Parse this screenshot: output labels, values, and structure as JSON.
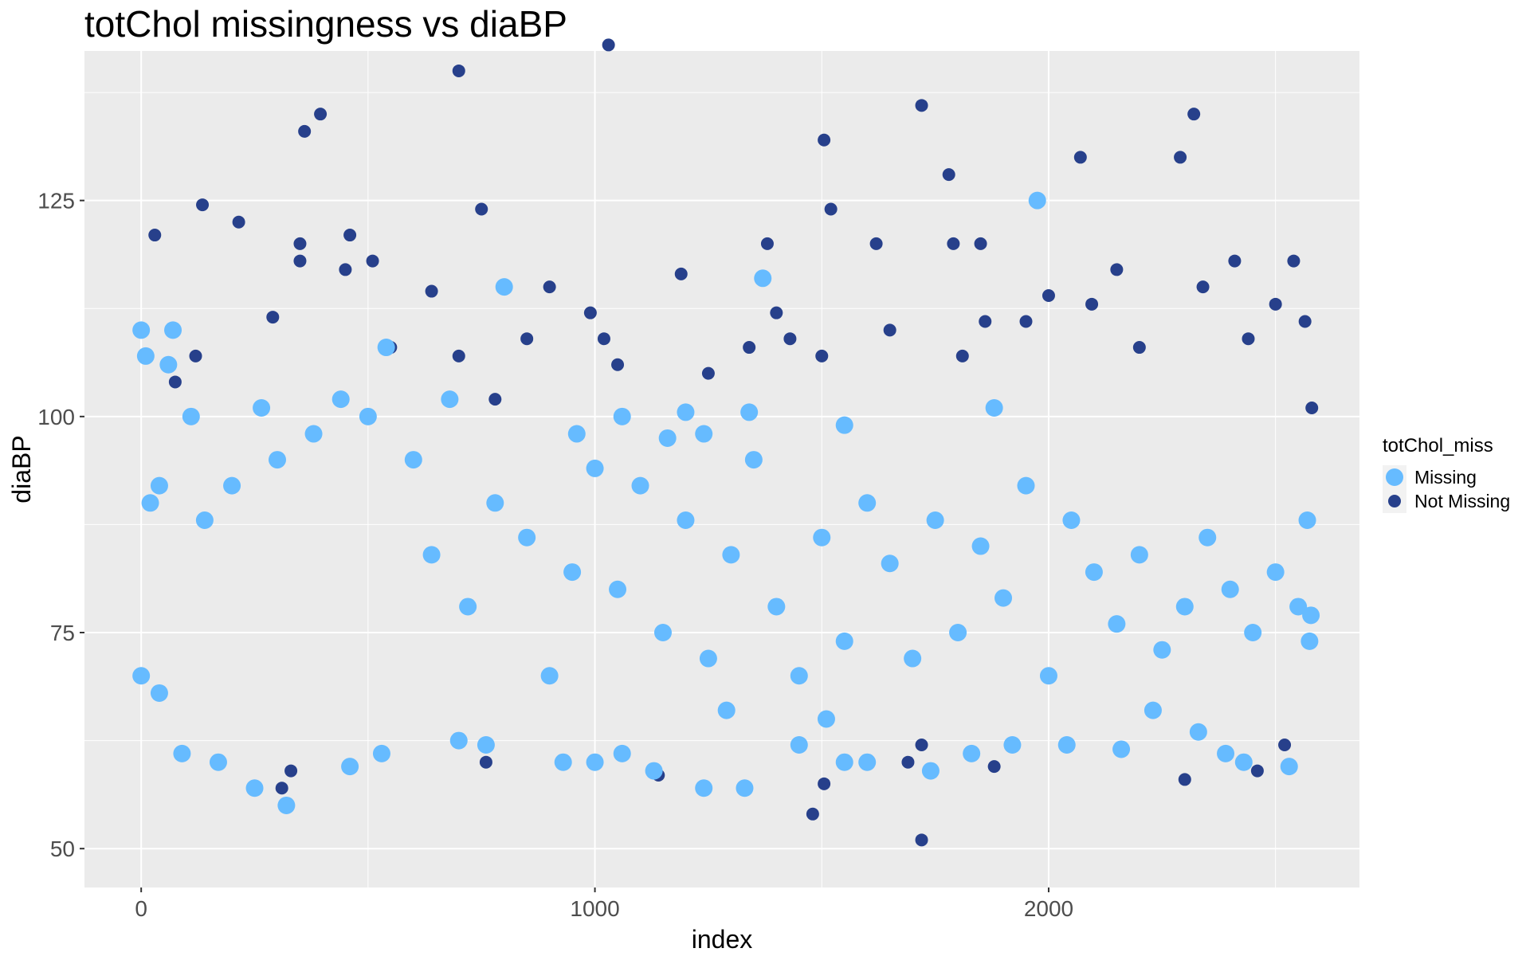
{
  "chart_data": {
    "type": "scatter",
    "title": "totChol missingness vs diaBP",
    "xlabel": "index",
    "ylabel": "diaBP",
    "xlim": [
      -125,
      2685
    ],
    "ylim": [
      45.5,
      142.3
    ],
    "x_ticks": [
      0,
      1000,
      2000
    ],
    "y_ticks": [
      50,
      75,
      100,
      125
    ],
    "grid": true,
    "legend": {
      "title": "totChol_miss",
      "position": "right",
      "entries": [
        "Missing",
        "Not Missing"
      ]
    },
    "colors": {
      "Missing": "#66bbff",
      "Not Missing": "#27408b",
      "panel": "#ebebeb",
      "grid": "#ffffff"
    },
    "series": [
      {
        "name": "Not Missing",
        "color": "#27408b",
        "points": [
          [
            30,
            121
          ],
          [
            75,
            104
          ],
          [
            120,
            107
          ],
          [
            135,
            124.5
          ],
          [
            215,
            122.5
          ],
          [
            290,
            111.5
          ],
          [
            350,
            118
          ],
          [
            350,
            120
          ],
          [
            360,
            133
          ],
          [
            395,
            135
          ],
          [
            450,
            117
          ],
          [
            460,
            121
          ],
          [
            510,
            118
          ],
          [
            550,
            108
          ],
          [
            640,
            114.5
          ],
          [
            700,
            140
          ],
          [
            700,
            107
          ],
          [
            750,
            124
          ],
          [
            780,
            102
          ],
          [
            850,
            109
          ],
          [
            900,
            115
          ],
          [
            990,
            112
          ],
          [
            1020,
            109
          ],
          [
            1030,
            143
          ],
          [
            1050,
            106
          ],
          [
            1190,
            116.5
          ],
          [
            1250,
            105
          ],
          [
            1340,
            108
          ],
          [
            1380,
            120
          ],
          [
            1400,
            112
          ],
          [
            1430,
            109
          ],
          [
            1500,
            107
          ],
          [
            1505,
            132
          ],
          [
            1520,
            124
          ],
          [
            1620,
            120
          ],
          [
            1650,
            110
          ],
          [
            1720,
            136
          ],
          [
            1780,
            128
          ],
          [
            1790,
            120
          ],
          [
            1810,
            107
          ],
          [
            1850,
            120
          ],
          [
            1860,
            111
          ],
          [
            1950,
            111
          ],
          [
            2000,
            114
          ],
          [
            2070,
            130
          ],
          [
            2095,
            113
          ],
          [
            2150,
            117
          ],
          [
            2200,
            108
          ],
          [
            2290,
            130
          ],
          [
            2320,
            135
          ],
          [
            2340,
            115
          ],
          [
            2410,
            118
          ],
          [
            2440,
            109
          ],
          [
            2500,
            113
          ],
          [
            2540,
            118
          ],
          [
            2565,
            111
          ],
          [
            2580,
            101
          ],
          [
            1720,
            51
          ],
          [
            1480,
            54
          ],
          [
            1505,
            57.5
          ],
          [
            310,
            57
          ],
          [
            330,
            59
          ],
          [
            1140,
            58.5
          ],
          [
            1880,
            59.5
          ],
          [
            2300,
            58
          ],
          [
            2460,
            59
          ],
          [
            1720,
            62
          ],
          [
            2520,
            62
          ],
          [
            760,
            60
          ],
          [
            1690,
            60
          ]
        ]
      },
      {
        "name": "Missing",
        "color": "#66bbff",
        "points": [
          [
            0,
            110
          ],
          [
            10,
            107
          ],
          [
            70,
            110
          ],
          [
            60,
            106
          ],
          [
            800,
            115
          ],
          [
            1370,
            116
          ],
          [
            1975,
            125
          ],
          [
            540,
            108
          ],
          [
            1200,
            100.5
          ],
          [
            1880,
            101
          ],
          [
            680,
            102
          ],
          [
            440,
            102
          ],
          [
            1060,
            100
          ],
          [
            1550,
            99
          ],
          [
            960,
            98
          ],
          [
            1240,
            98
          ],
          [
            1160,
            97.5
          ],
          [
            1340,
            100.5
          ],
          [
            110,
            100
          ],
          [
            265,
            101
          ],
          [
            20,
            90
          ],
          [
            40,
            92
          ],
          [
            140,
            88
          ],
          [
            200,
            92
          ],
          [
            300,
            95
          ],
          [
            380,
            98
          ],
          [
            500,
            100
          ],
          [
            600,
            95
          ],
          [
            640,
            84
          ],
          [
            720,
            78
          ],
          [
            780,
            90
          ],
          [
            850,
            86
          ],
          [
            900,
            70
          ],
          [
            950,
            82
          ],
          [
            1000,
            94
          ],
          [
            1050,
            80
          ],
          [
            1100,
            92
          ],
          [
            1150,
            75
          ],
          [
            1200,
            88
          ],
          [
            1250,
            72
          ],
          [
            1300,
            84
          ],
          [
            1350,
            95
          ],
          [
            1400,
            78
          ],
          [
            1450,
            70
          ],
          [
            1500,
            86
          ],
          [
            1550,
            74
          ],
          [
            1600,
            90
          ],
          [
            1650,
            83
          ],
          [
            1700,
            72
          ],
          [
            1750,
            88
          ],
          [
            1800,
            75
          ],
          [
            1850,
            85
          ],
          [
            1900,
            79
          ],
          [
            1950,
            92
          ],
          [
            2000,
            70
          ],
          [
            2050,
            88
          ],
          [
            2100,
            82
          ],
          [
            2150,
            76
          ],
          [
            2200,
            84
          ],
          [
            2250,
            73
          ],
          [
            2300,
            78
          ],
          [
            2350,
            86
          ],
          [
            2400,
            80
          ],
          [
            2450,
            75
          ],
          [
            2500,
            82
          ],
          [
            2550,
            78
          ],
          [
            2570,
            88
          ],
          [
            2575,
            74
          ],
          [
            2578,
            77
          ],
          [
            0,
            70
          ],
          [
            40,
            68
          ],
          [
            90,
            61
          ],
          [
            170,
            60
          ],
          [
            250,
            57
          ],
          [
            320,
            55
          ],
          [
            460,
            59.5
          ],
          [
            530,
            61
          ],
          [
            700,
            62.5
          ],
          [
            760,
            62
          ],
          [
            930,
            60
          ],
          [
            1000,
            60
          ],
          [
            1060,
            61
          ],
          [
            1130,
            59
          ],
          [
            1240,
            57
          ],
          [
            1330,
            57
          ],
          [
            1450,
            62
          ],
          [
            1550,
            60
          ],
          [
            1600,
            60
          ],
          [
            1740,
            59
          ],
          [
            1830,
            61
          ],
          [
            1920,
            62
          ],
          [
            2040,
            62
          ],
          [
            2160,
            61.5
          ],
          [
            2330,
            63.5
          ],
          [
            2390,
            61
          ],
          [
            2430,
            60
          ],
          [
            2530,
            59.5
          ],
          [
            2230,
            66
          ],
          [
            1510,
            65
          ],
          [
            1290,
            66
          ]
        ]
      }
    ]
  }
}
